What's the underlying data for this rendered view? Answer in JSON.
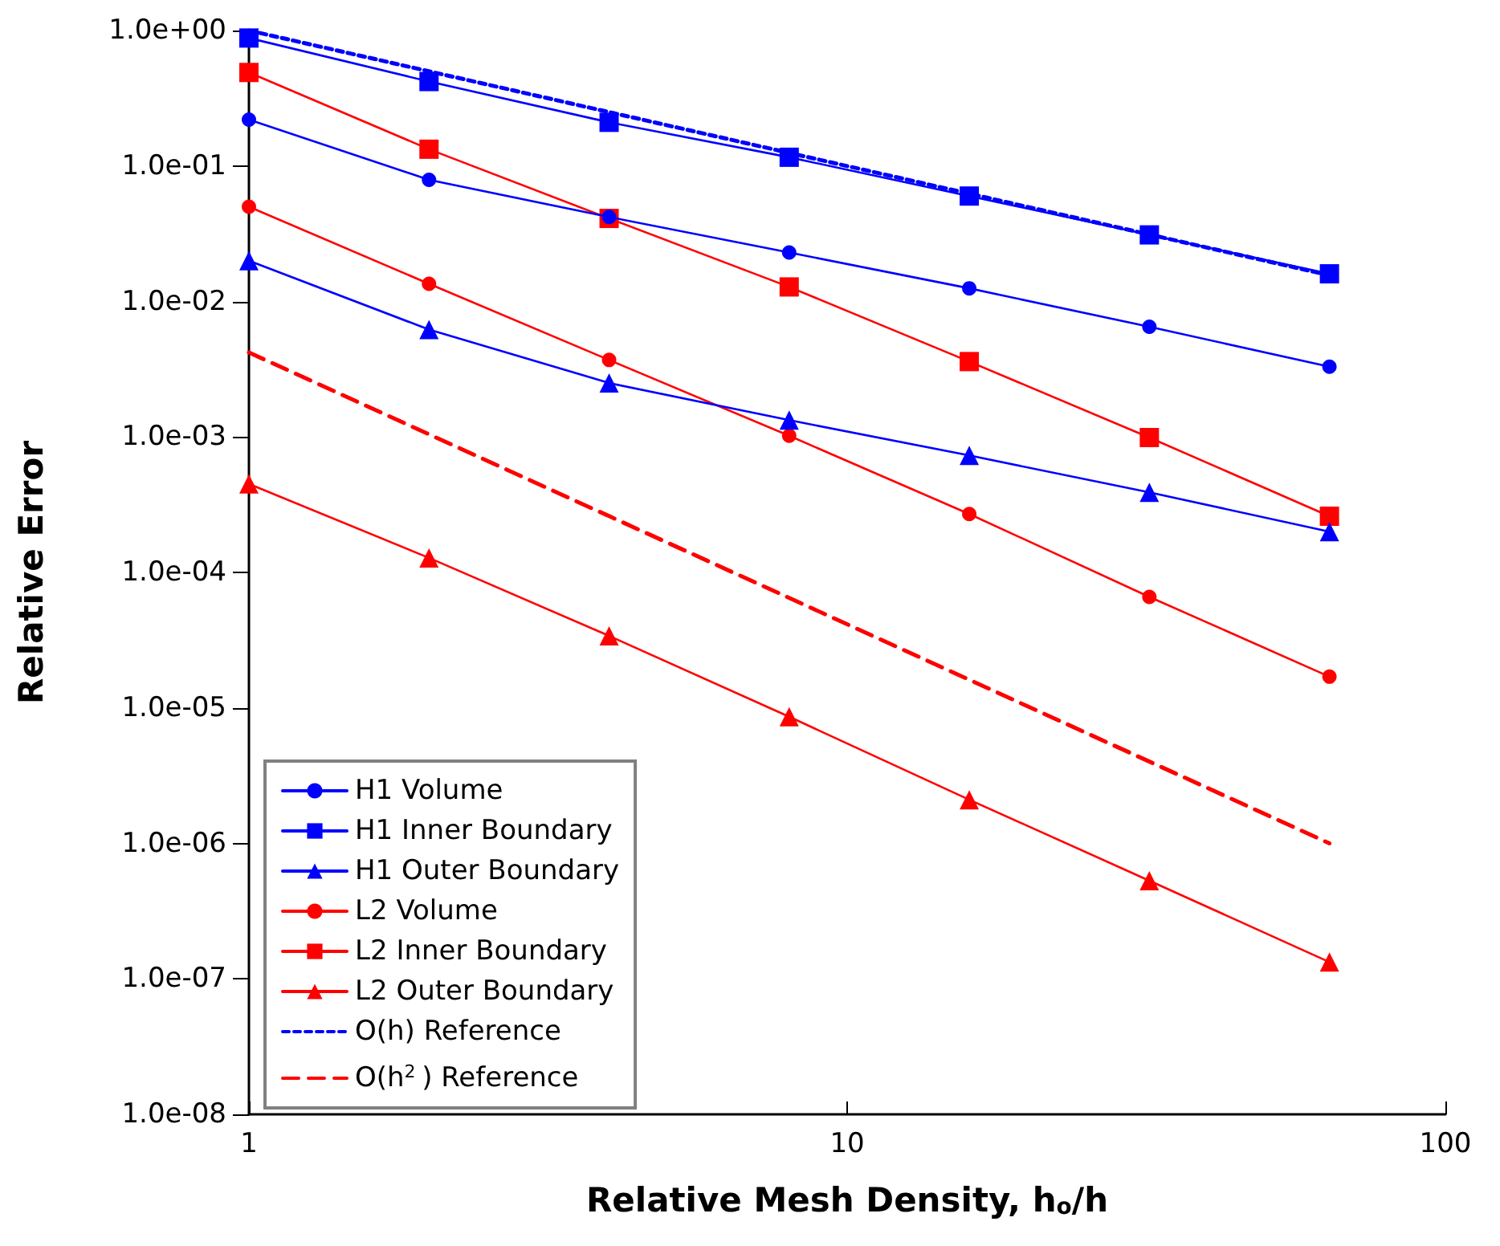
{
  "chart_data": {
    "type": "line",
    "xlabel": "Relative Mesh Density, h$_{o}$/h",
    "ylabel": "Relative Error",
    "log": "xy",
    "grid": false,
    "legend": "bottom left",
    "xlim": [
      1,
      100
    ],
    "xticks": [
      1,
      10,
      100
    ],
    "ylim": [
      1e-08,
      1
    ],
    "yticks": [
      {
        "value": 1e-08,
        "label": "1.0e-08"
      },
      {
        "value": 1e-07,
        "label": "1.0e-07"
      },
      {
        "value": 1e-06,
        "label": "1.0e-06"
      },
      {
        "value": 1e-05,
        "label": "1.0e-05"
      },
      {
        "value": 0.0001,
        "label": "1.0e-04"
      },
      {
        "value": 0.001,
        "label": "1.0e-03"
      },
      {
        "value": 0.01,
        "label": "1.0e-02"
      },
      {
        "value": 0.1,
        "label": "1.0e-01"
      },
      {
        "value": 1,
        "label": "1.0e+00"
      }
    ],
    "series": [
      {
        "name": "H1 Volume",
        "color": "#0000ff",
        "marker": "circle",
        "line_style": "solid",
        "x": [
          1,
          2,
          4,
          8,
          16,
          32,
          64
        ],
        "values": [
          0.22,
          0.079,
          0.042,
          0.023,
          0.0125,
          0.0065,
          0.0033
        ]
      },
      {
        "name": "H1 Inner Boundary",
        "color": "#0000ff",
        "marker": "square",
        "line_style": "solid",
        "x": [
          1,
          2,
          4,
          8,
          16,
          32,
          64
        ],
        "values": [
          0.88,
          0.42,
          0.21,
          0.116,
          0.06,
          0.031,
          0.016
        ]
      },
      {
        "name": "H1 Outer Boundary",
        "color": "#0000ff",
        "marker": "triangle",
        "line_style": "solid",
        "x": [
          1,
          2,
          4,
          8,
          16,
          32,
          64
        ],
        "values": [
          0.02,
          0.0062,
          0.0025,
          0.00133,
          0.00073,
          0.00039,
          0.0002
        ]
      },
      {
        "name": "L2 Volume",
        "color": "#ff0000",
        "marker": "circle",
        "line_style": "solid",
        "x": [
          1,
          2,
          4,
          8,
          16,
          32,
          64
        ],
        "values": [
          0.05,
          0.0135,
          0.0037,
          0.00102,
          0.00027,
          6.6e-05,
          1.7e-05
        ]
      },
      {
        "name": "L2 Inner Boundary",
        "color": "#ff0000",
        "marker": "square",
        "line_style": "solid",
        "x": [
          1,
          2,
          4,
          8,
          16,
          32,
          64
        ],
        "values": [
          0.49,
          0.133,
          0.041,
          0.0128,
          0.0036,
          0.00099,
          0.00026
        ]
      },
      {
        "name": "L2 Outer Boundary",
        "color": "#ff0000",
        "marker": "triangle",
        "line_style": "solid",
        "x": [
          1,
          2,
          4,
          8,
          16,
          32,
          64
        ],
        "values": [
          0.00045,
          0.000128,
          3.4e-05,
          8.6e-06,
          2.1e-06,
          5.3e-07,
          1.33e-07
        ]
      },
      {
        "name": "O(h) Reference",
        "color": "#0000ff",
        "marker": "none",
        "line_style": "dotted",
        "x": [
          1,
          64
        ],
        "values": [
          1,
          0.0156
        ]
      },
      {
        "name": "O(h$^{2}$) Reference",
        "color": "#ff0000",
        "marker": "none",
        "line_style": "dashed",
        "x": [
          1,
          64
        ],
        "values": [
          0.0042,
          1e-06
        ]
      }
    ]
  }
}
